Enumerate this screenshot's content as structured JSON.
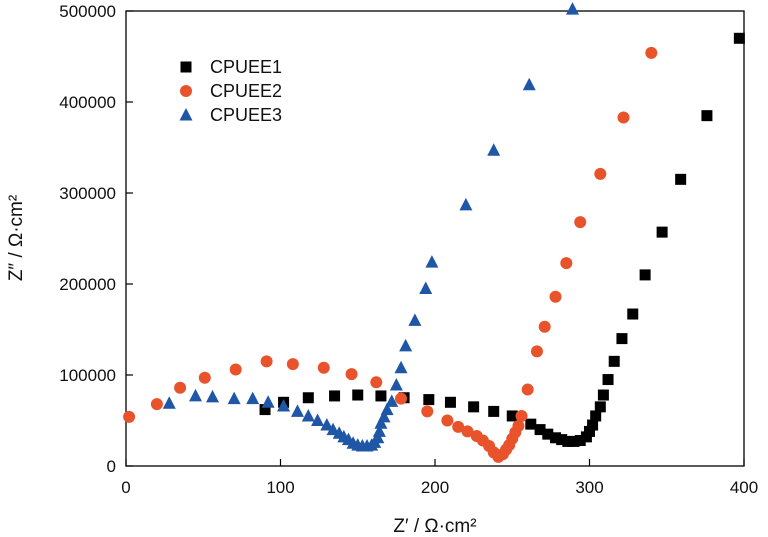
{
  "chart_data": {
    "type": "scatter",
    "xlabel": "Z′ / Ω·cm²",
    "ylabel": "Z″ / Ω·cm²",
    "xlim": [
      0,
      400
    ],
    "ylim": [
      0,
      500000
    ],
    "xticks": [
      0,
      100,
      200,
      300,
      400
    ],
    "yticks": [
      0,
      100000,
      200000,
      300000,
      400000,
      500000
    ],
    "grid": false,
    "legend_position": "top-left",
    "series": [
      {
        "name": "CPUEE1",
        "marker": "square",
        "color": "#000000",
        "points": [
          [
            90,
            62000
          ],
          [
            102,
            70000
          ],
          [
            118,
            75000
          ],
          [
            135,
            77000
          ],
          [
            150,
            78000
          ],
          [
            165,
            77000
          ],
          [
            180,
            75000
          ],
          [
            196,
            73000
          ],
          [
            210,
            70000
          ],
          [
            225,
            65000
          ],
          [
            238,
            60000
          ],
          [
            250,
            55000
          ],
          [
            262,
            46000
          ],
          [
            268,
            40000
          ],
          [
            273,
            35000
          ],
          [
            278,
            31000
          ],
          [
            282,
            29000
          ],
          [
            286,
            27000
          ],
          [
            290,
            27000
          ],
          [
            294,
            28000
          ],
          [
            298,
            32000
          ],
          [
            300,
            38000
          ],
          [
            302,
            45000
          ],
          [
            304,
            55000
          ],
          [
            307,
            65000
          ],
          [
            309,
            78000
          ],
          [
            312,
            95000
          ],
          [
            316,
            115000
          ],
          [
            321,
            140000
          ],
          [
            328,
            167000
          ],
          [
            336,
            210000
          ],
          [
            347,
            257000
          ],
          [
            359,
            315000
          ],
          [
            376,
            385000
          ],
          [
            397,
            470000
          ]
        ]
      },
      {
        "name": "CPUEE2",
        "marker": "circle",
        "color": "#e8532b",
        "points": [
          [
            2,
            54000
          ],
          [
            20,
            68000
          ],
          [
            35,
            86000
          ],
          [
            51,
            97000
          ],
          [
            71,
            106000
          ],
          [
            91,
            115000
          ],
          [
            108,
            112000
          ],
          [
            128,
            108000
          ],
          [
            146,
            101000
          ],
          [
            162,
            92000
          ],
          [
            178,
            74000
          ],
          [
            195,
            60000
          ],
          [
            208,
            50000
          ],
          [
            215,
            43000
          ],
          [
            221,
            38000
          ],
          [
            227,
            33000
          ],
          [
            231,
            28000
          ],
          [
            235,
            22000
          ],
          [
            238,
            15000
          ],
          [
            241,
            10000
          ],
          [
            244,
            13000
          ],
          [
            246,
            18000
          ],
          [
            248,
            23000
          ],
          [
            250,
            30000
          ],
          [
            252,
            37000
          ],
          [
            254,
            44000
          ],
          [
            256,
            55000
          ],
          [
            260,
            84000
          ],
          [
            266,
            126000
          ],
          [
            271,
            153000
          ],
          [
            278,
            186000
          ],
          [
            285,
            223000
          ],
          [
            294,
            268000
          ],
          [
            307,
            321000
          ],
          [
            322,
            383000
          ],
          [
            340,
            454000
          ]
        ]
      },
      {
        "name": "CPUEE3",
        "marker": "triangle",
        "color": "#1f57a6",
        "points": [
          [
            28,
            69000
          ],
          [
            45,
            77000
          ],
          [
            56,
            76000
          ],
          [
            70,
            74000
          ],
          [
            82,
            74000
          ],
          [
            92,
            70000
          ],
          [
            102,
            66000
          ],
          [
            111,
            60000
          ],
          [
            118,
            55000
          ],
          [
            124,
            50000
          ],
          [
            130,
            45000
          ],
          [
            134,
            40000
          ],
          [
            138,
            36000
          ],
          [
            141,
            32000
          ],
          [
            144,
            29000
          ],
          [
            147,
            25000
          ],
          [
            150,
            23000
          ],
          [
            153,
            22000
          ],
          [
            156,
            22000
          ],
          [
            159,
            23000
          ],
          [
            161,
            26000
          ],
          [
            163,
            31000
          ],
          [
            164,
            38000
          ],
          [
            165,
            47000
          ],
          [
            167,
            54000
          ],
          [
            169,
            62000
          ],
          [
            172,
            71000
          ],
          [
            175,
            89000
          ],
          [
            178,
            108000
          ],
          [
            181,
            132000
          ],
          [
            187,
            160000
          ],
          [
            194,
            195000
          ],
          [
            198,
            224000
          ],
          [
            220,
            287000
          ],
          [
            238,
            347000
          ],
          [
            261,
            419000
          ],
          [
            289,
            502000
          ]
        ]
      }
    ]
  }
}
